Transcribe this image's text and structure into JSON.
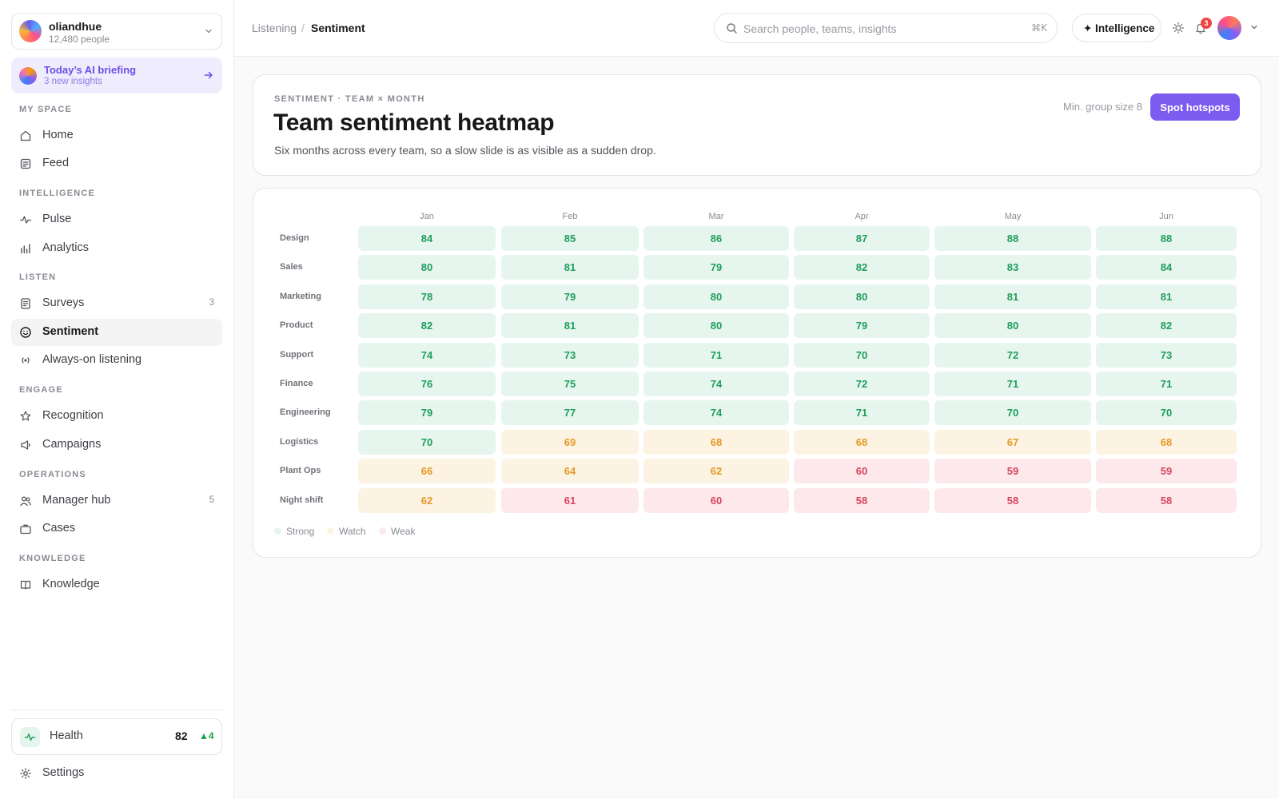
{
  "workspace": {
    "name": "oliandhue",
    "people": "12,480 people"
  },
  "briefing": {
    "title": "Today’s AI briefing",
    "subtitle": "3 new insights"
  },
  "sections": {
    "my_space": "MY SPACE",
    "intelligence": "INTELLIGENCE",
    "listen": "LISTEN",
    "engage": "ENGAGE",
    "operations": "OPERATIONS",
    "knowledge": "KNOWLEDGE"
  },
  "nav": {
    "home": "Home",
    "feed": "Feed",
    "pulse": "Pulse",
    "analytics": "Analytics",
    "surveys": "Surveys",
    "surveys_count": "3",
    "sentiment": "Sentiment",
    "always_on": "Always-on listening",
    "recognition": "Recognition",
    "campaigns": "Campaigns",
    "manager_hub": "Manager hub",
    "manager_hub_count": "5",
    "cases": "Cases",
    "knowledge": "Knowledge",
    "settings": "Settings"
  },
  "health": {
    "label": "Health",
    "value": "82",
    "delta": "▲4"
  },
  "breadcrumb": {
    "parent": "Listening",
    "separator": "/",
    "current": "Sentiment"
  },
  "search": {
    "placeholder": "Search people, teams, insights",
    "shortcut": "⌘K"
  },
  "topbar": {
    "intelligence_label": "✦ Intelligence",
    "notification_count": "3"
  },
  "header": {
    "eyebrow": "SENTIMENT · TEAM × MONTH",
    "title": "Team sentiment heatmap",
    "subtitle": "Six months across every team, so a slow slide is as visible as a sudden drop.",
    "min_group": "Min. group size 8",
    "action": "Spot hotspots"
  },
  "colors": {
    "accent": "#7c5cf0",
    "strong_bg": "#e6f6ee",
    "strong_fg": "#1f9d5c",
    "watch_bg": "#fdf3e3",
    "watch_fg": "#e39a24",
    "weak_bg": "#fde9ec",
    "weak_fg": "#d6455d"
  },
  "heatmap": {
    "months": [
      "Jan",
      "Feb",
      "Mar",
      "Apr",
      "May",
      "Jun"
    ],
    "rows": [
      {
        "team": "Design",
        "values": [
          84,
          85,
          86,
          87,
          88,
          88
        ],
        "bands": [
          "strong",
          "strong",
          "strong",
          "strong",
          "strong",
          "strong"
        ]
      },
      {
        "team": "Sales",
        "values": [
          80,
          81,
          79,
          82,
          83,
          84
        ],
        "bands": [
          "strong",
          "strong",
          "strong",
          "strong",
          "strong",
          "strong"
        ]
      },
      {
        "team": "Marketing",
        "values": [
          78,
          79,
          80,
          80,
          81,
          81
        ],
        "bands": [
          "strong",
          "strong",
          "strong",
          "strong",
          "strong",
          "strong"
        ]
      },
      {
        "team": "Product",
        "values": [
          82,
          81,
          80,
          79,
          80,
          82
        ],
        "bands": [
          "strong",
          "strong",
          "strong",
          "strong",
          "strong",
          "strong"
        ]
      },
      {
        "team": "Support",
        "values": [
          74,
          73,
          71,
          70,
          72,
          73
        ],
        "bands": [
          "strong",
          "strong",
          "strong",
          "strong",
          "strong",
          "strong"
        ]
      },
      {
        "team": "Finance",
        "values": [
          76,
          75,
          74,
          72,
          71,
          71
        ],
        "bands": [
          "strong",
          "strong",
          "strong",
          "strong",
          "strong",
          "strong"
        ]
      },
      {
        "team": "Engineering",
        "values": [
          79,
          77,
          74,
          71,
          70,
          70
        ],
        "bands": [
          "strong",
          "strong",
          "strong",
          "strong",
          "strong",
          "strong"
        ]
      },
      {
        "team": "Logistics",
        "values": [
          70,
          69,
          68,
          68,
          67,
          68
        ],
        "bands": [
          "strong",
          "watch",
          "watch",
          "watch",
          "watch",
          "watch"
        ]
      },
      {
        "team": "Plant Ops",
        "values": [
          66,
          64,
          62,
          60,
          59,
          59
        ],
        "bands": [
          "watch",
          "watch",
          "watch",
          "weak",
          "weak",
          "weak"
        ]
      },
      {
        "team": "Night shift",
        "values": [
          62,
          61,
          60,
          58,
          58,
          58
        ],
        "bands": [
          "watch",
          "weak",
          "weak",
          "weak",
          "weak",
          "weak"
        ]
      }
    ],
    "legend": [
      "Strong",
      "Watch",
      "Weak"
    ]
  }
}
